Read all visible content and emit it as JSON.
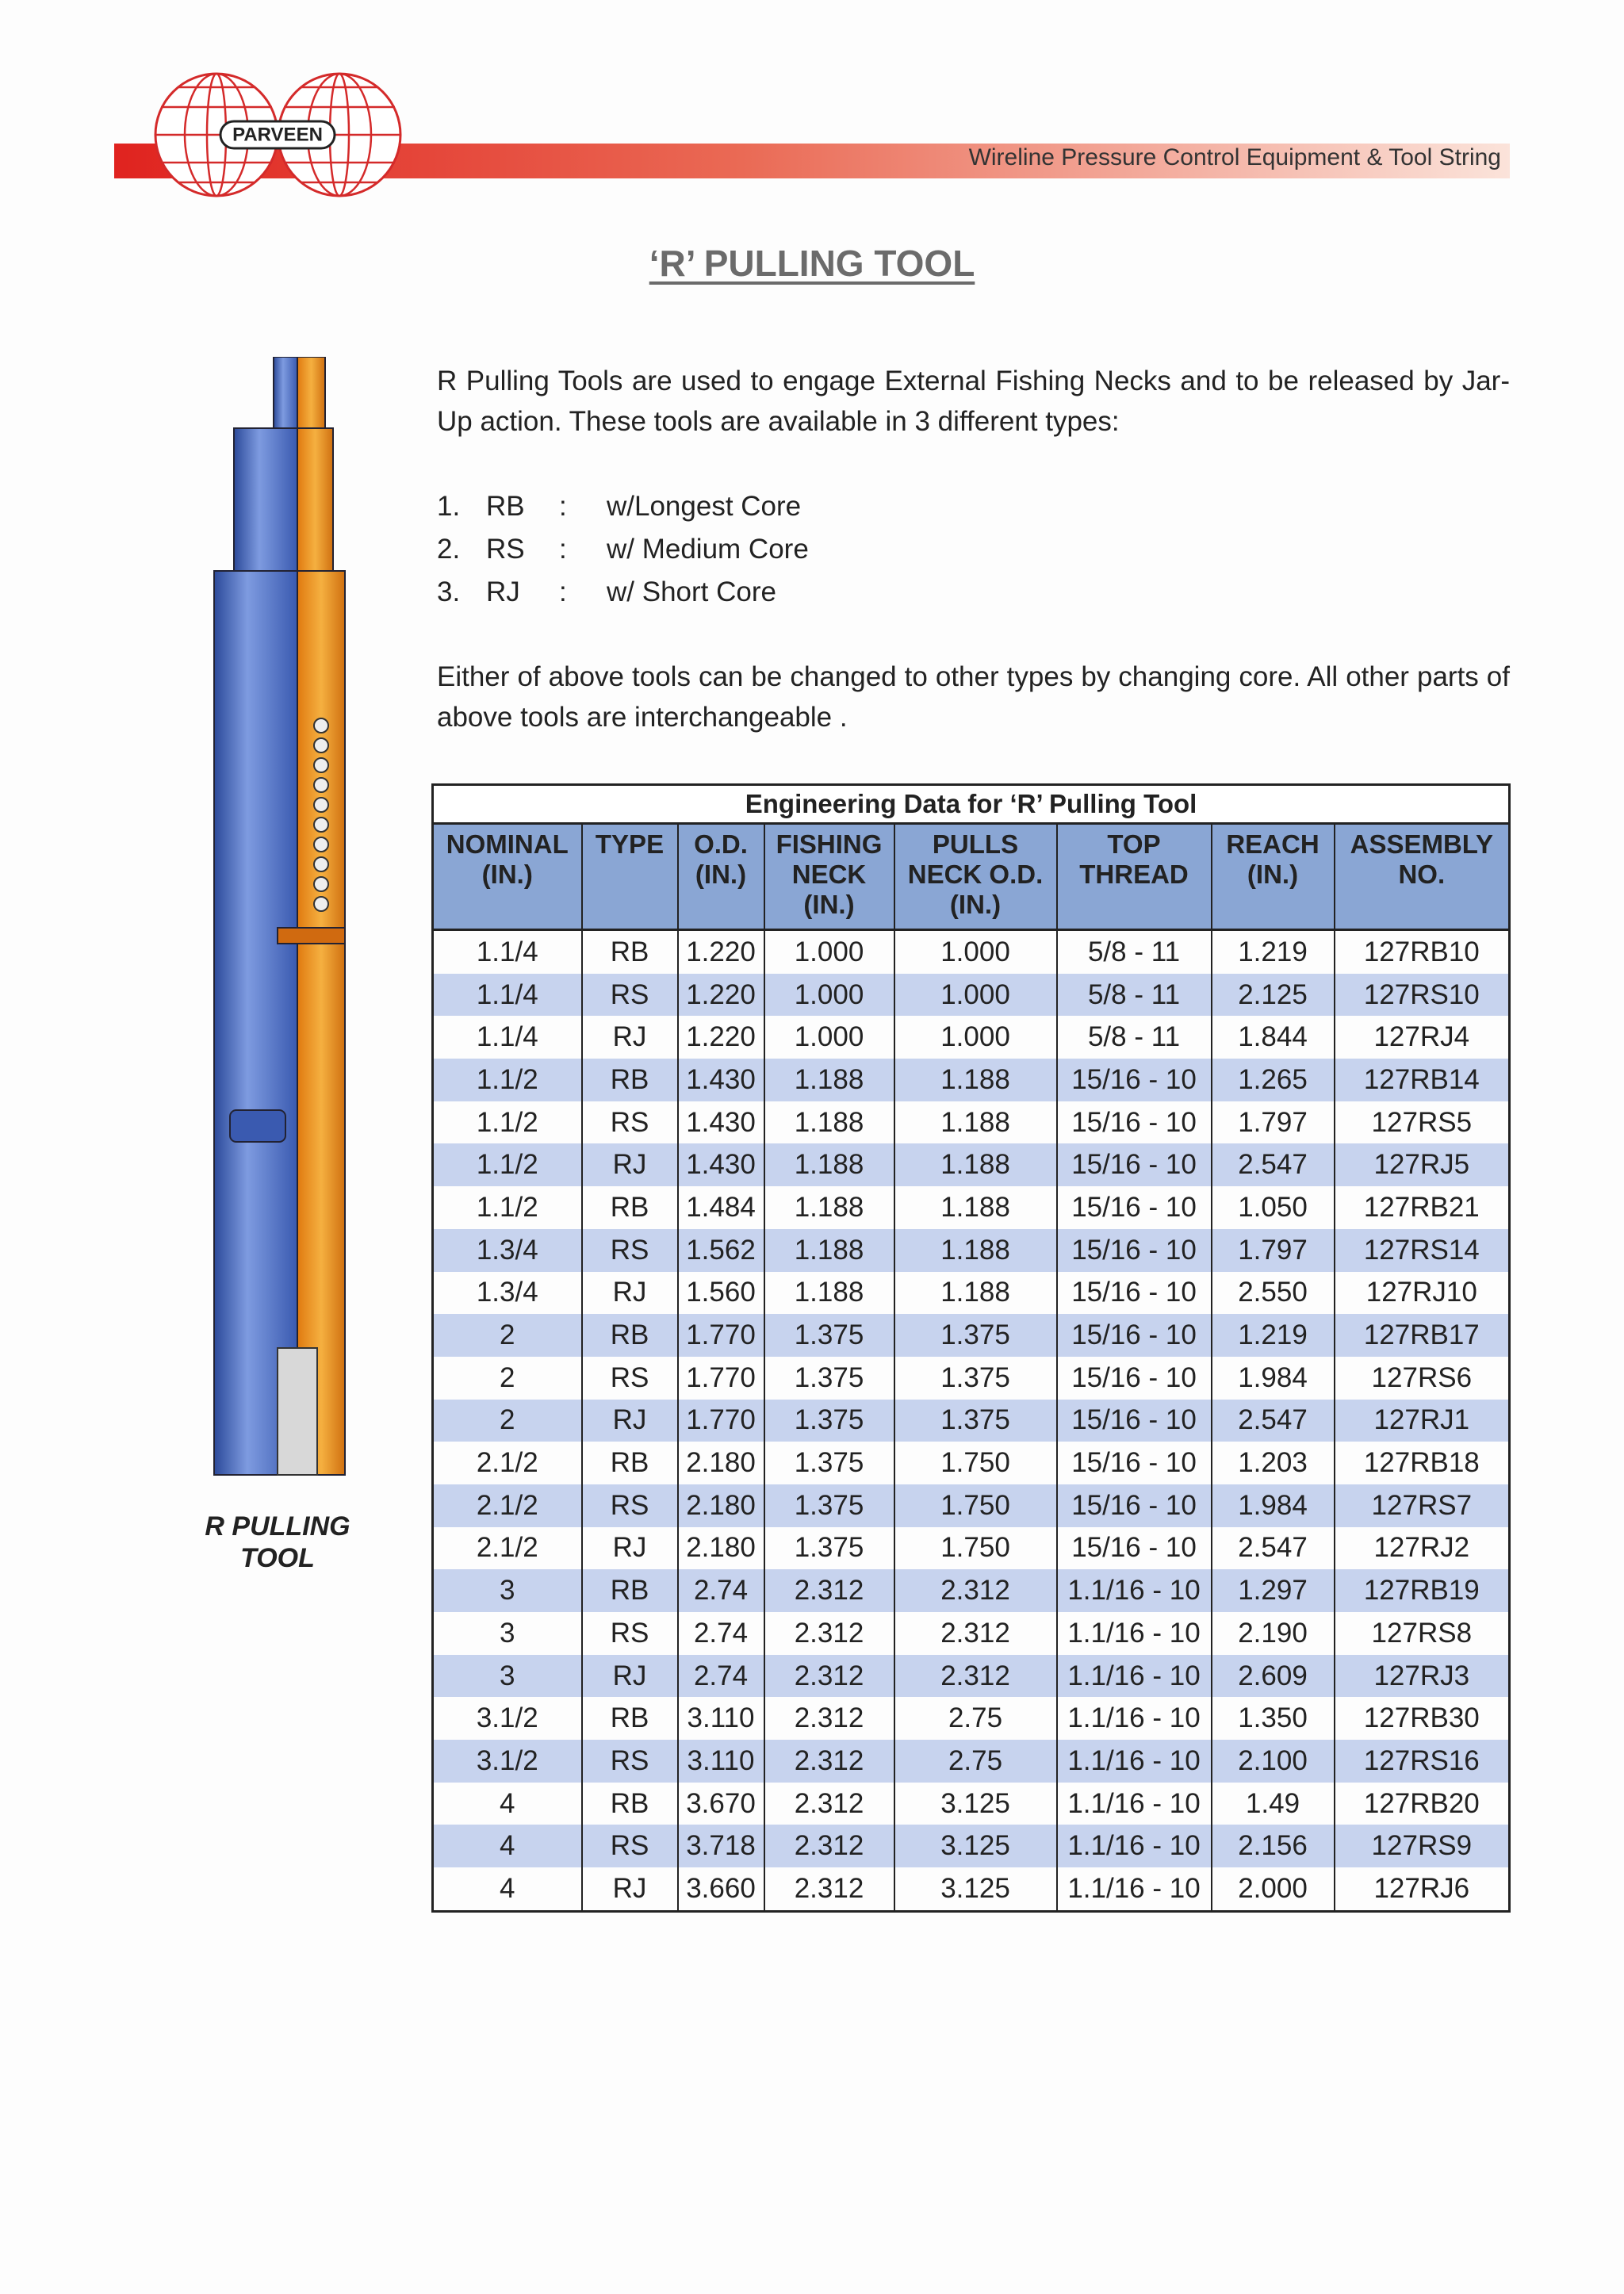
{
  "header": {
    "logo": "PARVEEN",
    "tagline": "Wireline Pressure Control Equipment & Tool String"
  },
  "title": "‘R’ PULLING TOOL",
  "intro": "R Pulling Tools are used to engage External Fishing Necks and to be released by Jar-Up action. These tools are available in 3 different types:",
  "types": [
    {
      "number": "1.",
      "code": "RB",
      "separator": ":",
      "description": "w/Longest Core"
    },
    {
      "number": "2.",
      "code": "RS",
      "separator": ":",
      "description": "w/  Medium Core"
    },
    {
      "number": "3.",
      "code": "RJ",
      "separator": ":",
      "description": "w/ Short Core"
    }
  ],
  "note": "Either of above tools can be changed to other types by changing core. All other parts of above tools are interchangeable .",
  "illustration_label": "R PULLING\nTOOL",
  "table": {
    "caption": "Engineering Data for ‘R’ Pulling Tool",
    "columns": [
      "NOMINAL\n(IN.)",
      "TYPE",
      "O.D.\n(IN.)",
      "FISHING\nNECK\n(IN.)",
      "PULLS\nNECK O.D.\n(IN.)",
      "TOP\nTHREAD",
      "REACH\n(IN.)",
      "ASSEMBLY\nNO."
    ],
    "rows": [
      [
        "1.1/4",
        "RB",
        "1.220",
        "1.000",
        "1.000",
        "5/8 - 11",
        "1.219",
        "127RB10"
      ],
      [
        "1.1/4",
        "RS",
        "1.220",
        "1.000",
        "1.000",
        "5/8 - 11",
        "2.125",
        "127RS10"
      ],
      [
        "1.1/4",
        "RJ",
        "1.220",
        "1.000",
        "1.000",
        "5/8 - 11",
        "1.844",
        "127RJ4"
      ],
      [
        "1.1/2",
        "RB",
        "1.430",
        "1.188",
        "1.188",
        "15/16 - 10",
        "1.265",
        "127RB14"
      ],
      [
        "1.1/2",
        "RS",
        "1.430",
        "1.188",
        "1.188",
        "15/16 - 10",
        "1.797",
        "127RS5"
      ],
      [
        "1.1/2",
        "RJ",
        "1.430",
        "1.188",
        "1.188",
        "15/16 - 10",
        "2.547",
        "127RJ5"
      ],
      [
        "1.1/2",
        "RB",
        "1.484",
        "1.188",
        "1.188",
        "15/16 - 10",
        "1.050",
        "127RB21"
      ],
      [
        "1.3/4",
        "RS",
        "1.562",
        "1.188",
        "1.188",
        "15/16 - 10",
        "1.797",
        "127RS14"
      ],
      [
        "1.3/4",
        "RJ",
        "1.560",
        "1.188",
        "1.188",
        "15/16 - 10",
        "2.550",
        "127RJ10"
      ],
      [
        "2",
        "RB",
        "1.770",
        "1.375",
        "1.375",
        "15/16 - 10",
        "1.219",
        "127RB17"
      ],
      [
        "2",
        "RS",
        "1.770",
        "1.375",
        "1.375",
        "15/16 - 10",
        "1.984",
        "127RS6"
      ],
      [
        "2",
        "RJ",
        "1.770",
        "1.375",
        "1.375",
        "15/16 - 10",
        "2.547",
        "127RJ1"
      ],
      [
        "2.1/2",
        "RB",
        "2.180",
        "1.375",
        "1.750",
        "15/16 - 10",
        "1.203",
        "127RB18"
      ],
      [
        "2.1/2",
        "RS",
        "2.180",
        "1.375",
        "1.750",
        "15/16 - 10",
        "1.984",
        "127RS7"
      ],
      [
        "2.1/2",
        "RJ",
        "2.180",
        "1.375",
        "1.750",
        "15/16 - 10",
        "2.547",
        "127RJ2"
      ],
      [
        "3",
        "RB",
        "2.74",
        "2.312",
        "2.312",
        "1.1/16 - 10",
        "1.297",
        "127RB19"
      ],
      [
        "3",
        "RS",
        "2.74",
        "2.312",
        "2.312",
        "1.1/16 - 10",
        "2.190",
        "127RS8"
      ],
      [
        "3",
        "RJ",
        "2.74",
        "2.312",
        "2.312",
        "1.1/16 - 10",
        "2.609",
        "127RJ3"
      ],
      [
        "3.1/2",
        "RB",
        "3.110",
        "2.312",
        "2.75",
        "1.1/16 - 10",
        "1.350",
        "127RB30"
      ],
      [
        "3.1/2",
        "RS",
        "3.110",
        "2.312",
        "2.75",
        "1.1/16 - 10",
        "2.100",
        "127RS16"
      ],
      [
        "4",
        "RB",
        "3.670",
        "2.312",
        "3.125",
        "1.1/16 - 10",
        "1.49",
        "127RB20"
      ],
      [
        "4",
        "RS",
        "3.718",
        "2.312",
        "3.125",
        "1.1/16 - 10",
        "2.156",
        "127RS9"
      ],
      [
        "4",
        "RJ",
        "3.660",
        "2.312",
        "3.125",
        "1.1/16 - 10",
        "2.000",
        "127RJ6"
      ]
    ]
  }
}
